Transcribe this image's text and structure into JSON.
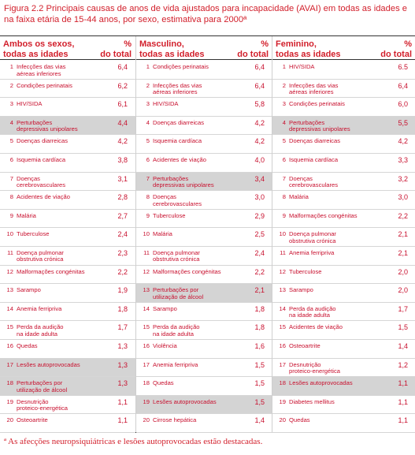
{
  "caption": "Figura 2.2 Principais causas de anos de vida ajustados para incapacidade (AVAI) em todas as idades e na faixa etária de 15-44 anos, por sexo, estimativa para 2000ª",
  "columns": [
    {
      "header": "Ambos os sexos,\ntodas as idades",
      "pct_header": "%\ndo total",
      "rows": [
        {
          "rank": "1",
          "cause": "Infecções das vias\naéreas inferiores",
          "pct": "6,4",
          "highlight": false
        },
        {
          "rank": "2",
          "cause": "Condições perinatais",
          "pct": "6,2",
          "highlight": false
        },
        {
          "rank": "3",
          "cause": "HIV/SIDA",
          "pct": "6,1",
          "highlight": false
        },
        {
          "rank": "4",
          "cause": "Perturbações\ndepressivas unipolares",
          "pct": "4,4",
          "highlight": true
        },
        {
          "rank": "5",
          "cause": "Doenças diarreicas",
          "pct": "4,2",
          "highlight": false
        },
        {
          "rank": "6",
          "cause": "Isquemia cardíaca",
          "pct": "3,8",
          "highlight": false
        },
        {
          "rank": "7",
          "cause": "Doenças\ncerebrovasculares",
          "pct": "3,1",
          "highlight": false
        },
        {
          "rank": "8",
          "cause": "Acidentes de viação",
          "pct": "2,8",
          "highlight": false
        },
        {
          "rank": "9",
          "cause": "Malária",
          "pct": "2,7",
          "highlight": false
        },
        {
          "rank": "10",
          "cause": "Tuberculose",
          "pct": "2,4",
          "highlight": false
        },
        {
          "rank": "11",
          "cause": "Doença pulmonar\nobstrutiva crónica",
          "pct": "2,3",
          "highlight": false
        },
        {
          "rank": "12",
          "cause": "Malformações congénitas",
          "pct": "2,2",
          "highlight": false
        },
        {
          "rank": "13",
          "cause": "Sarampo",
          "pct": "1,9",
          "highlight": false
        },
        {
          "rank": "14",
          "cause": "Anemia ferripriva",
          "pct": "1,8",
          "highlight": false
        },
        {
          "rank": "15",
          "cause": "Perda da audição\nna idade adulta",
          "pct": "1,7",
          "highlight": false
        },
        {
          "rank": "16",
          "cause": "Quedas",
          "pct": "1,3",
          "highlight": false
        },
        {
          "rank": "17",
          "cause": "Lesões autoprovocadas",
          "pct": "1,3",
          "highlight": true
        },
        {
          "rank": "18",
          "cause": "Perturbações por\nutilização de álcool",
          "pct": "1,3",
          "highlight": true
        },
        {
          "rank": "19",
          "cause": "Desnutrição\nproteico-energética",
          "pct": "1,1",
          "highlight": false
        },
        {
          "rank": "20",
          "cause": "Osteoartrite",
          "pct": "1,1",
          "highlight": false
        }
      ]
    },
    {
      "header": "Masculino,\ntodas as idades",
      "pct_header": "%\ndo total",
      "rows": [
        {
          "rank": "1",
          "cause": "Condições perinatais",
          "pct": "6,4",
          "highlight": false
        },
        {
          "rank": "2",
          "cause": "Infecções das vias\naéreas inferiores",
          "pct": "6,4",
          "highlight": false
        },
        {
          "rank": "3",
          "cause": "HIV/SIDA",
          "pct": "5,8",
          "highlight": false
        },
        {
          "rank": "4",
          "cause": "Doenças diarreicas",
          "pct": "4,2",
          "highlight": false
        },
        {
          "rank": "5",
          "cause": "Isquemia cardíaca",
          "pct": "4,2",
          "highlight": false
        },
        {
          "rank": "6",
          "cause": "Acidentes de viação",
          "pct": "4,0",
          "highlight": false
        },
        {
          "rank": "7",
          "cause": "Perturbações\ndepressivas unipolares",
          "pct": "3,4",
          "highlight": true
        },
        {
          "rank": "8",
          "cause": "Doenças\ncerebrovasculares",
          "pct": "3,0",
          "highlight": false
        },
        {
          "rank": "9",
          "cause": "Tuberculose",
          "pct": "2,9",
          "highlight": false
        },
        {
          "rank": "10",
          "cause": "Malária",
          "pct": "2,5",
          "highlight": false
        },
        {
          "rank": "11",
          "cause": "Doença pulmonar\nobstrutiva crónica",
          "pct": "2,4",
          "highlight": false
        },
        {
          "rank": "12",
          "cause": "Malformações congénitas",
          "pct": "2,2",
          "highlight": false
        },
        {
          "rank": "13",
          "cause": "Perturbações por\nutilização de álcool",
          "pct": "2,1",
          "highlight": true
        },
        {
          "rank": "14",
          "cause": "Sarampo",
          "pct": "1,8",
          "highlight": false
        },
        {
          "rank": "15",
          "cause": "Perda da audição\nna idade adulta",
          "pct": "1,8",
          "highlight": false
        },
        {
          "rank": "16",
          "cause": "Violência",
          "pct": "1,6",
          "highlight": false
        },
        {
          "rank": "17",
          "cause": "Anemia ferripriva",
          "pct": "1,5",
          "highlight": false
        },
        {
          "rank": "18",
          "cause": "Quedas",
          "pct": "1,5",
          "highlight": false
        },
        {
          "rank": "19",
          "cause": "Lesões autoprovocadas",
          "pct": "1,5",
          "highlight": true
        },
        {
          "rank": "20",
          "cause": "Cirrose hepática",
          "pct": "1,4",
          "highlight": false
        }
      ]
    },
    {
      "header": "Feminino,\ntodas as idades",
      "pct_header": "%\ndo total",
      "rows": [
        {
          "rank": "1",
          "cause": "HIV/SIDA",
          "pct": "6.5",
          "highlight": false
        },
        {
          "rank": "2",
          "cause": "Infecções das vias\naéreas inferiores",
          "pct": "6,4",
          "highlight": false
        },
        {
          "rank": "3",
          "cause": "Condições perinatais",
          "pct": "6,0",
          "highlight": false
        },
        {
          "rank": "4",
          "cause": "Perturbações\ndepressivas unipolares",
          "pct": "5,5",
          "highlight": true
        },
        {
          "rank": "5",
          "cause": "Doenças diarreicas",
          "pct": "4,2",
          "highlight": false
        },
        {
          "rank": "6",
          "cause": "Isquemia cardíaca",
          "pct": "3,3",
          "highlight": false
        },
        {
          "rank": "7",
          "cause": "Doenças\ncerebrovasculares",
          "pct": "3,2",
          "highlight": false
        },
        {
          "rank": "8",
          "cause": "Malária",
          "pct": "3,0",
          "highlight": false
        },
        {
          "rank": "9",
          "cause": "Malformações congénitas",
          "pct": "2,2",
          "highlight": false
        },
        {
          "rank": "10",
          "cause": "Doença pulmonar\nobstrutiva crónica",
          "pct": "2,1",
          "highlight": false
        },
        {
          "rank": "11",
          "cause": "Anemia ferripriva",
          "pct": "2,1",
          "highlight": false
        },
        {
          "rank": "12",
          "cause": "Tuberculose",
          "pct": "2,0",
          "highlight": false
        },
        {
          "rank": "13",
          "cause": "Sarampo",
          "pct": "2,0",
          "highlight": false
        },
        {
          "rank": "14",
          "cause": "Perda da audição\nna idade adulta",
          "pct": "1,7",
          "highlight": false
        },
        {
          "rank": "15",
          "cause": "Acidentes de viação",
          "pct": "1,5",
          "highlight": false
        },
        {
          "rank": "16",
          "cause": "Osteoartrite",
          "pct": "1,4",
          "highlight": false
        },
        {
          "rank": "17",
          "cause": "Desnutrição\nproteico-energética",
          "pct": "1,2",
          "highlight": false
        },
        {
          "rank": "18",
          "cause": "Lesões autoprovocadas",
          "pct": "1,1",
          "highlight": true
        },
        {
          "rank": "19",
          "cause": "Diabetes mellitus",
          "pct": "1,1",
          "highlight": false
        },
        {
          "rank": "20",
          "cause": "Quedas",
          "pct": "1,1",
          "highlight": false
        }
      ]
    }
  ],
  "footnote": "ª As afecções neuropsiquiátricas e lesões autoprovocadas estão destacadas.",
  "colors": {
    "text": "#c8102e",
    "highlight_bg": "#d4d4d4",
    "rule": "#333333"
  }
}
